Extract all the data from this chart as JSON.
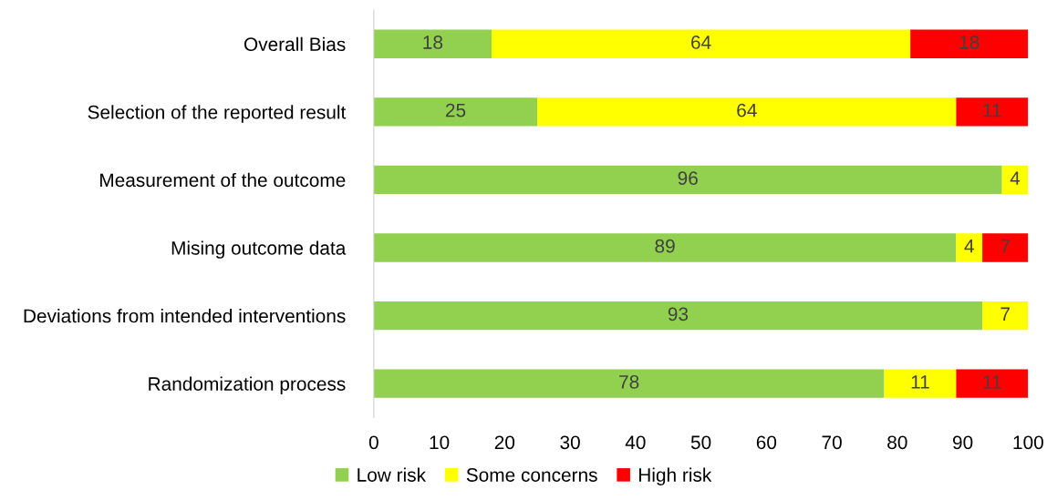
{
  "chart_data": {
    "type": "bar",
    "orientation": "horizontal",
    "stacked": true,
    "categories": [
      "Overall Bias",
      "Selection of the reported result",
      "Measurement of the outcome",
      "Mising outcome data",
      "Deviations from intended interventions",
      "Randomization process"
    ],
    "series": [
      {
        "name": "Low risk",
        "color": "#92d050",
        "values": [
          18,
          25,
          96,
          89,
          93,
          78
        ],
        "value_labels": [
          "18",
          "25",
          "96",
          "89",
          "93",
          "78"
        ]
      },
      {
        "name": "Some concerns",
        "color": "#ffff00",
        "values": [
          64,
          64,
          4,
          4,
          7,
          11
        ],
        "value_labels": [
          "64",
          "64",
          "4",
          "4",
          "7",
          "11"
        ]
      },
      {
        "name": "High risk",
        "color": "#ff0000",
        "values": [
          18,
          11,
          0,
          7,
          0,
          11
        ],
        "value_labels": [
          "18",
          "11",
          null,
          "7",
          null,
          "11"
        ]
      }
    ],
    "xlim": [
      0,
      100
    ],
    "xticks": [
      0,
      10,
      20,
      30,
      40,
      50,
      60,
      70,
      80,
      90,
      100
    ],
    "grid": false,
    "legend": "bottom"
  }
}
